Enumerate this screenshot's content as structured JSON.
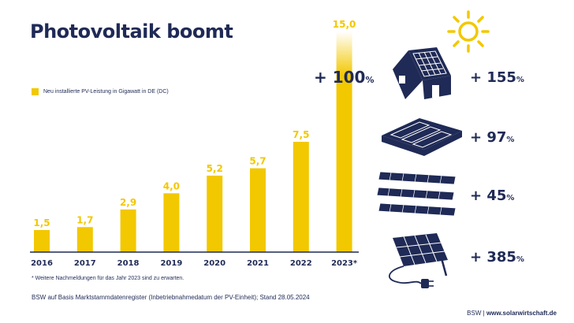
{
  "header": {
    "title": "Photovoltaik boomt"
  },
  "legend": {
    "label": "Neu installierte PV-Leistung in Gigawatt in DE (DC)",
    "color": "#f2c800"
  },
  "chart_data": {
    "type": "bar",
    "categories": [
      "2016",
      "2017",
      "2018",
      "2019",
      "2020",
      "2021",
      "2022",
      "2023*"
    ],
    "values": [
      1.5,
      1.7,
      2.9,
      4.0,
      5.2,
      5.7,
      7.5,
      15.0
    ],
    "value_labels": [
      "1,5",
      "1,7",
      "2,9",
      "4,0",
      "5,2",
      "5,7",
      "7,5",
      "15,0"
    ],
    "ylim": [
      0,
      15
    ],
    "grid": false,
    "bar_color": "#f2c800",
    "axis_color": "#1f2a56",
    "title": "Photovoltaik boomt"
  },
  "growth_badge": {
    "value": "+ 100",
    "unit": "%"
  },
  "segments": [
    {
      "icon": "house-solar-roof-icon",
      "value": "+ 155",
      "unit": "%"
    },
    {
      "icon": "commercial-roof-solar-icon",
      "value": "+ 97",
      "unit": "%"
    },
    {
      "icon": "solar-park-rows-icon",
      "value": "+ 45",
      "unit": "%"
    },
    {
      "icon": "plug-in-solar-panel-icon",
      "value": "+ 385",
      "unit": "%"
    }
  ],
  "footnote": "* Weitere Nachmeldungen für das Jahr 2023 sind zu erwarten.",
  "source": "BSW auf Basis Marktstammdatenregister (Inbetriebnahmedatum der PV-Einheit); Stand 28.05.2024",
  "footer": {
    "org": "BSW",
    "separator": "|",
    "url": "www.solarwirtschaft.de"
  },
  "decor": {
    "sun_icon": "sun-icon"
  }
}
